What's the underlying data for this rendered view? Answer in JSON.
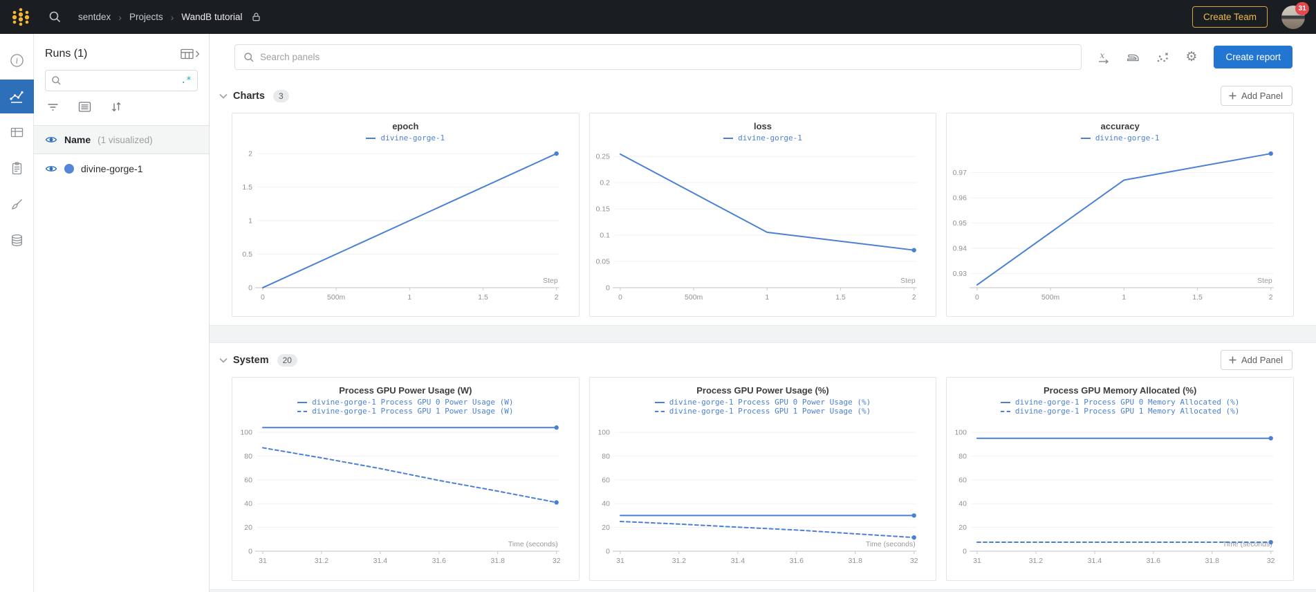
{
  "topbar": {
    "breadcrumb": {
      "items": [
        "sentdex",
        "Projects",
        "WandB tutorial"
      ],
      "separator": "›"
    },
    "create_team_label": "Create Team",
    "notification_count": "31"
  },
  "nav_rail": {
    "items": [
      {
        "name": "overview",
        "selected": false
      },
      {
        "name": "workspace-charts",
        "selected": true
      },
      {
        "name": "runs-table",
        "selected": false
      },
      {
        "name": "logs",
        "selected": false
      },
      {
        "name": "sweeps",
        "selected": false
      },
      {
        "name": "artifacts",
        "selected": false
      }
    ]
  },
  "runs_panel": {
    "title": "Runs (1)",
    "search_placeholder": "",
    "regex_toggle": ".*",
    "header_name": "Name",
    "header_visualized": "(1 visualized)",
    "runs": [
      {
        "name": "divine-gorge-1",
        "color": "#5586d9",
        "visible": true
      }
    ]
  },
  "main_header": {
    "search_placeholder": "Search panels",
    "create_report_label": "Create report"
  },
  "sections": [
    {
      "title": "Charts",
      "count": "3",
      "add_panel_label": "Add Panel"
    },
    {
      "title": "System",
      "count": "20",
      "add_panel_label": "Add Panel"
    }
  ],
  "colors": {
    "accent_blue": "#4a80d4",
    "nav_selected_blue": "#2e6fba",
    "button_blue": "#2276d2",
    "brand_yellow": "#eebb4d",
    "regex_teal": "#14a8c0",
    "badge_red": "#e5484d",
    "eye_blue": "#2d6fba"
  },
  "chart_data": [
    {
      "type": "line",
      "title": "epoch",
      "xlabel": "Step",
      "x": [
        0,
        1,
        2
      ],
      "xlim": [
        0,
        2
      ],
      "ylim": [
        0,
        2
      ],
      "xticks": [
        0,
        0.5,
        1,
        1.5,
        2
      ],
      "xtick_labels": [
        "0",
        "500m",
        "1",
        "1.5",
        "2"
      ],
      "yticks": [
        0,
        0.5,
        1,
        1.5,
        2
      ],
      "ytick_labels": [
        "0",
        "0.5",
        "1",
        "1.5",
        "2"
      ],
      "series": [
        {
          "name": "divine-gorge-1",
          "style": "solid",
          "values": [
            0,
            1,
            2
          ]
        }
      ]
    },
    {
      "type": "line",
      "title": "loss",
      "xlabel": "Step",
      "x": [
        0,
        1,
        2
      ],
      "xlim": [
        0,
        2
      ],
      "ylim": [
        0,
        0.2555
      ],
      "xticks": [
        0,
        0.5,
        1,
        1.5,
        2
      ],
      "xtick_labels": [
        "0",
        "500m",
        "1",
        "1.5",
        "2"
      ],
      "yticks": [
        0,
        0.05,
        0.1,
        0.15,
        0.2,
        0.25
      ],
      "ytick_labels": [
        "0",
        "0.05",
        "0.1",
        "0.15",
        "0.2",
        "0.25"
      ],
      "series": [
        {
          "name": "divine-gorge-1",
          "style": "solid",
          "values": [
            0.2545,
            0.1055,
            0.0715
          ]
        }
      ]
    },
    {
      "type": "line",
      "title": "accuracy",
      "xlabel": "Step",
      "x": [
        0,
        1,
        2
      ],
      "xlim": [
        0,
        2
      ],
      "ylim": [
        0.9244,
        0.9775
      ],
      "xticks": [
        0,
        0.5,
        1,
        1.5,
        2
      ],
      "xtick_labels": [
        "0",
        "500m",
        "1",
        "1.5",
        "2"
      ],
      "yticks": [
        0.93,
        0.94,
        0.95,
        0.96,
        0.97
      ],
      "ytick_labels": [
        "0.93",
        "0.94",
        "0.95",
        "0.96",
        "0.97"
      ],
      "series": [
        {
          "name": "divine-gorge-1",
          "style": "solid",
          "values": [
            0.9255,
            0.967,
            0.9775
          ]
        }
      ]
    },
    {
      "type": "line",
      "title": "Process GPU Power Usage (W)",
      "xlabel": "Time (seconds)",
      "x": [
        31,
        31.2,
        31.4,
        31.6,
        31.8,
        32
      ],
      "xlim": [
        31,
        32
      ],
      "ylim": [
        0,
        107
      ],
      "xticks": [
        31,
        31.2,
        31.4,
        31.6,
        31.8,
        32
      ],
      "xtick_labels": [
        "31",
        "31.2",
        "31.4",
        "31.6",
        "31.8",
        "32"
      ],
      "yticks": [
        0,
        20,
        40,
        60,
        80,
        100
      ],
      "ytick_labels": [
        "0",
        "20",
        "40",
        "60",
        "80",
        "100"
      ],
      "series": [
        {
          "name": "divine-gorge-1 Process GPU 0 Power Usage (W)",
          "style": "solid",
          "values": [
            104,
            104,
            104,
            104,
            104,
            104
          ]
        },
        {
          "name": "divine-gorge-1 Process GPU 1 Power Usage (W)",
          "style": "dashed",
          "values": [
            87,
            78.5,
            69.5,
            59.5,
            50.5,
            41
          ]
        }
      ]
    },
    {
      "type": "line",
      "title": "Process GPU Power Usage (%)",
      "xlabel": "Time (seconds)",
      "x": [
        31,
        31.2,
        31.4,
        31.6,
        31.8,
        32
      ],
      "xlim": [
        31,
        32
      ],
      "ylim": [
        0,
        107
      ],
      "xticks": [
        31,
        31.2,
        31.4,
        31.6,
        31.8,
        32
      ],
      "xtick_labels": [
        "31",
        "31.2",
        "31.4",
        "31.6",
        "31.8",
        "32"
      ],
      "yticks": [
        0,
        20,
        40,
        60,
        80,
        100
      ],
      "ytick_labels": [
        "0",
        "20",
        "40",
        "60",
        "80",
        "100"
      ],
      "series": [
        {
          "name": "divine-gorge-1 Process GPU 0 Power Usage (%)",
          "style": "solid",
          "values": [
            30,
            30,
            30,
            30,
            30,
            30
          ]
        },
        {
          "name": "divine-gorge-1 Process GPU 1 Power Usage (%)",
          "style": "dashed",
          "values": [
            25,
            22.8,
            20.2,
            17.8,
            14.6,
            11.5
          ]
        }
      ]
    },
    {
      "type": "line",
      "title": "Process GPU Memory Allocated (%)",
      "xlabel": "Time (seconds)",
      "x": [
        31,
        31.2,
        31.4,
        31.6,
        31.8,
        32
      ],
      "xlim": [
        31,
        32
      ],
      "ylim": [
        0,
        107
      ],
      "xticks": [
        31,
        31.2,
        31.4,
        31.6,
        31.8,
        32
      ],
      "xtick_labels": [
        "31",
        "31.2",
        "31.4",
        "31.6",
        "31.8",
        "32"
      ],
      "yticks": [
        0,
        20,
        40,
        60,
        80,
        100
      ],
      "ytick_labels": [
        "0",
        "20",
        "40",
        "60",
        "80",
        "100"
      ],
      "series": [
        {
          "name": "divine-gorge-1 Process GPU 0 Memory Allocated (%)",
          "style": "solid",
          "values": [
            95,
            95,
            95,
            95,
            95,
            95
          ]
        },
        {
          "name": "divine-gorge-1 Process GPU 1 Memory Allocated (%)",
          "style": "dashed",
          "values": [
            7.5,
            7.5,
            7.5,
            7.5,
            7.5,
            7.5
          ]
        }
      ]
    }
  ]
}
